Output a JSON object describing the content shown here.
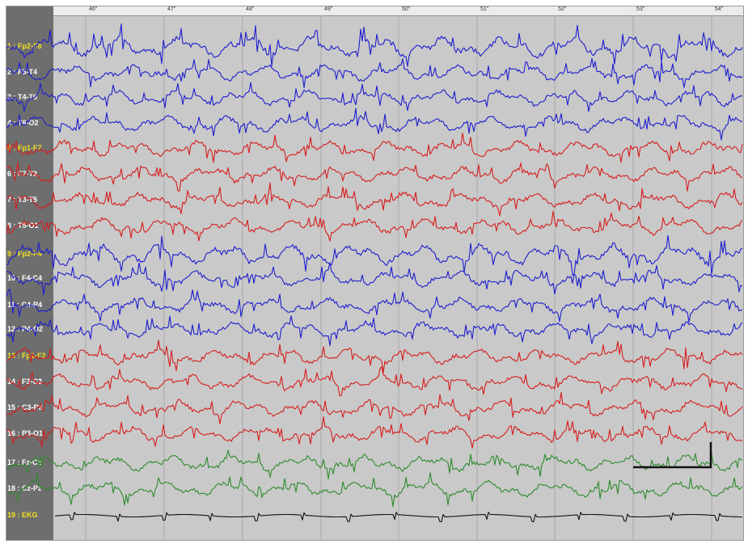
{
  "ruler": {
    "ticks": [
      "46\"",
      "47\"",
      "48\"",
      "49\"",
      "50\"",
      "51\"",
      "52\"",
      "53\"",
      "54\""
    ]
  },
  "channels": [
    {
      "label": "1 : Fp2-F8",
      "highlight": true,
      "color": "#1e1ecf"
    },
    {
      "label": "2 : F8-T4",
      "highlight": false,
      "color": "#1e1ecf"
    },
    {
      "label": "3 : T4-T6",
      "highlight": false,
      "color": "#1e1ecf"
    },
    {
      "label": "4 : T6-O2",
      "highlight": false,
      "color": "#1e1ecf"
    },
    {
      "label": "5 : Fp1-F7",
      "highlight": true,
      "color": "#d61e1e"
    },
    {
      "label": "6 : F7-T3",
      "highlight": false,
      "color": "#d61e1e"
    },
    {
      "label": "7 : T3-T5",
      "highlight": false,
      "color": "#d61e1e"
    },
    {
      "label": "8 : T5-O1",
      "highlight": false,
      "color": "#d61e1e"
    },
    {
      "label": "9 : Fp2-F4",
      "highlight": true,
      "color": "#1e1ecf"
    },
    {
      "label": "10 : F4-C4",
      "highlight": false,
      "color": "#1e1ecf"
    },
    {
      "label": "11 : C4-P4",
      "highlight": false,
      "color": "#1e1ecf"
    },
    {
      "label": "12 : P4-O2",
      "highlight": false,
      "color": "#1e1ecf"
    },
    {
      "label": "13 : Fp1-F3",
      "highlight": true,
      "color": "#d61e1e"
    },
    {
      "label": "14 : F3-C3",
      "highlight": false,
      "color": "#d61e1e"
    },
    {
      "label": "15 : C3-P3",
      "highlight": false,
      "color": "#d61e1e"
    },
    {
      "label": "16 : P3-O1",
      "highlight": false,
      "color": "#d61e1e"
    },
    {
      "label": "17 : Fz-Cz",
      "highlight": false,
      "color": "#2e8b2e"
    },
    {
      "label": "18 : Cz-Pz",
      "highlight": false,
      "color": "#2e8b2e"
    },
    {
      "label": "19 : EKG",
      "highlight": true,
      "color": "#111111"
    }
  ],
  "colors": {
    "label_highlight": "#f0e020",
    "label_normal": "#ffffff",
    "grid": "#a9a9a9",
    "calibration": "#111111"
  },
  "icons": {
    "calibration": "calibration-marker-icon"
  }
}
